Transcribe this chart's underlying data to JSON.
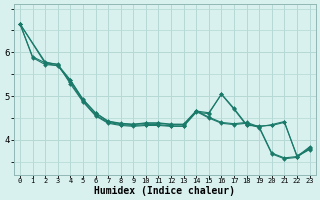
{
  "xlabel": "Humidex (Indice chaleur)",
  "bg_color": "#d8f0ee",
  "grid_color": "#b5d9d5",
  "line_color": "#1a7a6a",
  "xlim": [
    -0.5,
    23.5
  ],
  "ylim": [
    3.2,
    7.1
  ],
  "yticks": [
    4,
    5,
    6
  ],
  "xtick_labels": [
    "0",
    "1",
    "2",
    "3",
    "4",
    "5",
    "6",
    "7",
    "8",
    "9",
    "10",
    "11",
    "12",
    "13",
    "14",
    "15",
    "16",
    "17",
    "18",
    "19",
    "20",
    "21",
    "22",
    "23"
  ],
  "series": [
    {
      "x": [
        0,
        1,
        2,
        3,
        4,
        5,
        6,
        7,
        8,
        9,
        10,
        11,
        12,
        13,
        14,
        15,
        16,
        17,
        18,
        19,
        20,
        21,
        22,
        23
      ],
      "y": [
        6.65,
        5.9,
        5.76,
        5.73,
        5.28,
        4.87,
        4.55,
        4.38,
        4.33,
        4.31,
        4.33,
        4.33,
        4.31,
        4.31,
        4.63,
        4.6,
        5.05,
        4.72,
        4.35,
        4.3,
        4.35,
        4.42,
        3.62,
        3.78
      ]
    },
    {
      "x": [
        0,
        1,
        2,
        3,
        4,
        5,
        6,
        7,
        8,
        9,
        10,
        11,
        12,
        13,
        14,
        15,
        16,
        17,
        18,
        19,
        20,
        21,
        22,
        23
      ],
      "y": [
        6.65,
        5.88,
        5.72,
        5.7,
        5.32,
        4.89,
        4.57,
        4.4,
        4.35,
        4.33,
        4.35,
        4.35,
        4.32,
        4.32,
        4.66,
        4.62,
        5.04,
        4.7,
        4.33,
        4.32,
        4.33,
        4.4,
        3.64,
        3.79
      ]
    },
    {
      "x": [
        0,
        2,
        3,
        4,
        5,
        6,
        7,
        8,
        9,
        10,
        11,
        12,
        13,
        14,
        15,
        16,
        17,
        18,
        19,
        20,
        21,
        22,
        23
      ],
      "y": [
        6.65,
        5.75,
        5.69,
        5.36,
        4.92,
        4.61,
        4.42,
        4.37,
        4.35,
        4.38,
        4.38,
        4.35,
        4.35,
        4.65,
        4.5,
        4.38,
        4.35,
        4.38,
        4.28,
        3.68,
        3.57,
        3.6,
        3.82
      ]
    },
    {
      "x": [
        0,
        2,
        3,
        4,
        5,
        6,
        7,
        8,
        9,
        10,
        11,
        12,
        13,
        14,
        15,
        16,
        17,
        18,
        19,
        20,
        21,
        22,
        23
      ],
      "y": [
        6.65,
        5.78,
        5.72,
        5.37,
        4.93,
        4.62,
        4.43,
        4.38,
        4.36,
        4.39,
        4.39,
        4.36,
        4.36,
        4.67,
        4.52,
        4.4,
        4.37,
        4.4,
        4.3,
        3.7,
        3.59,
        3.62,
        3.84
      ]
    }
  ]
}
